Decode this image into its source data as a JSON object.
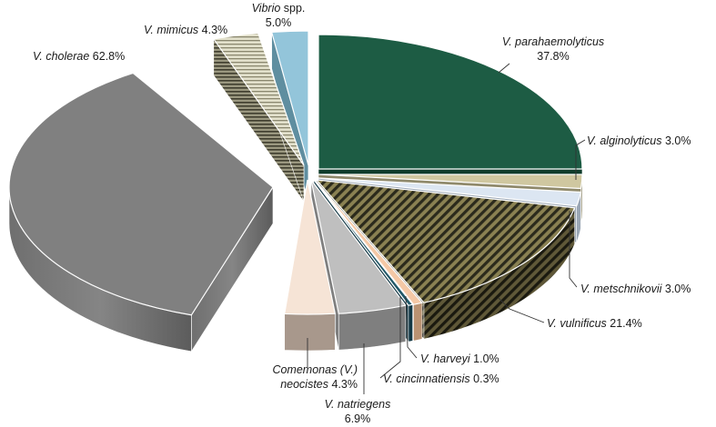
{
  "chart_data": {
    "type": "pie",
    "style": "3d-exploded",
    "title": "",
    "slices": [
      {
        "key": "parahaemolyticus",
        "species": "V. parahaemolyticus",
        "value_label": "37.8%",
        "value": 37.8,
        "color": "#1d5c44",
        "pattern": "solid"
      },
      {
        "key": "alginolyticus",
        "species": "V. alginolyticus",
        "value_label": "3.0%",
        "value": 3.0,
        "color": "#cfc7a0",
        "pattern": "solid"
      },
      {
        "key": "metschnikovii",
        "species": "V. metschnikovii",
        "value_label": "3.0%",
        "value": 3.0,
        "color": "#dce6f2",
        "pattern": "solid"
      },
      {
        "key": "vulnificus",
        "species": "V. vulnificus",
        "value_label": "21.4%",
        "value": 21.4,
        "color": "#7f7646",
        "pattern": "diagonal-stripes"
      },
      {
        "key": "harveyi",
        "species": "V. harveyi",
        "value_label": "1.0%",
        "value": 1.0,
        "color": "#f4c8a6",
        "pattern": "solid"
      },
      {
        "key": "cincinnatiensis",
        "species": "V. cincinnatiensis",
        "value_label": "0.3%",
        "value": 0.3,
        "color": "#215868",
        "pattern": "solid"
      },
      {
        "key": "natriegens",
        "species": "V. natriegens",
        "value_label": "6.9%",
        "value": 6.9,
        "color": "#bfbfbf",
        "pattern": "solid"
      },
      {
        "key": "neocistes",
        "species": "Comemonas (V.) neocistes",
        "species_line1": "Comemonas (V.)",
        "species_line2": "neocistes",
        "value_label": "4.3%",
        "value": 4.3,
        "color": "#f6e4d6",
        "pattern": "solid"
      },
      {
        "key": "cholerae",
        "species": "V. cholerae",
        "value_label": "62.8%",
        "value": 62.8,
        "color": "#808080",
        "pattern": "solid"
      },
      {
        "key": "mimicus",
        "species": "V. mimicus",
        "value_label": "4.3%",
        "value": 4.3,
        "color": "#d9d9c3",
        "pattern": "horizontal-stripes"
      },
      {
        "key": "vibrio_spp",
        "species": "Vibrio",
        "species_suffix": "spp.",
        "value_label": "5.0%",
        "value": 5.0,
        "color": "#93c5da",
        "pattern": "solid"
      }
    ]
  }
}
